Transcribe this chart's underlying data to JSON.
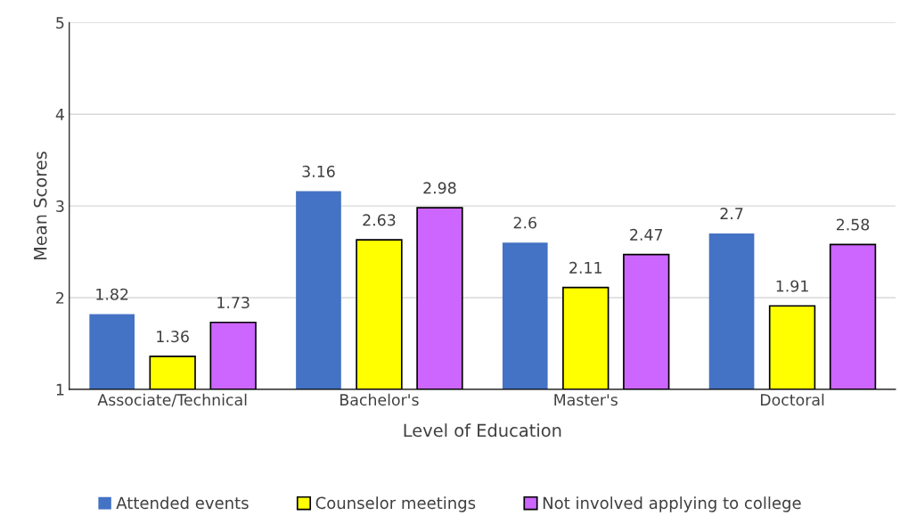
{
  "chart_data": {
    "type": "bar",
    "xlabel": "Level of Education",
    "ylabel": "Mean Scores",
    "categories": [
      "Associate/Technical",
      "Bachelor's",
      "Master's",
      "Doctoral"
    ],
    "series": [
      {
        "name": "Attended events",
        "color": "#4472c4",
        "values": [
          1.82,
          3.16,
          2.6,
          2.7
        ]
      },
      {
        "name": "Counselor meetings",
        "color": "#ffff00",
        "values": [
          1.36,
          2.63,
          2.11,
          1.91
        ]
      },
      {
        "name": "Not involved applying to college",
        "color": "#cc66ff",
        "values": [
          1.73,
          2.98,
          2.47,
          2.58
        ]
      }
    ],
    "ylim": [
      1,
      5
    ],
    "yticks": [
      1,
      2,
      3,
      4,
      5
    ],
    "grid": "y",
    "legend": "bottom",
    "data_labels": true
  }
}
